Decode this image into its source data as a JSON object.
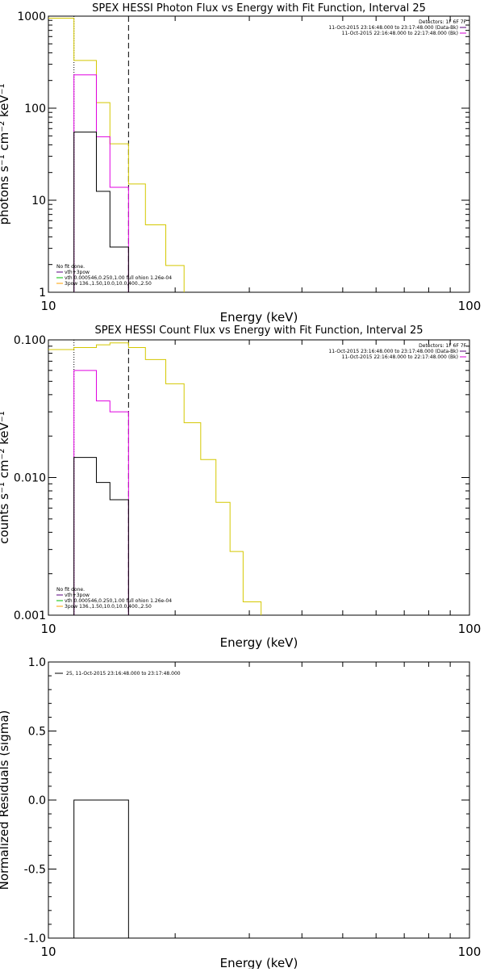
{
  "chart_data": [
    {
      "type": "line",
      "title": "SPEX HESSI Photon Flux vs Energy with Fit Function, Interval 25",
      "xlabel": "Energy (keV)",
      "ylabel": "photons s⁻¹ cm⁻² keV⁻¹",
      "xscale": "log",
      "yscale": "log",
      "xlim": [
        10,
        100
      ],
      "ylim": [
        1,
        1000
      ],
      "x_ticks": [
        10,
        100
      ],
      "y_ticks": [
        1,
        10,
        100,
        1000
      ],
      "y_tick_labels": [
        "1",
        "10",
        "100",
        "1000"
      ],
      "x_tick_labels": [
        "10",
        "100"
      ],
      "legend_top": [
        "Detectors: 1F 6F 7F",
        "11-Oct-2015 23:16:48.000 to 23:17:48.000 (Data-Bk)",
        "11-Oct-2015 22:16:48.000 to 22:17:48.000 (Bk)"
      ],
      "legend_top_colors": [
        "",
        "#5a007f",
        "#d400d4"
      ],
      "legend_bottom": [
        "No fit done.",
        "vth+3pow",
        "vth 0.000546,0.250,1.00  full ohion 1.26e-04",
        "3pow 136.,1.50,10.0,10.0,400.,2.50"
      ],
      "legend_bottom_colors": [
        "",
        "#5a007f",
        "#00c000",
        "#ffa000"
      ],
      "vlines": [
        {
          "x": 11.5,
          "color": "#000000",
          "style": "dotted"
        },
        {
          "x": 15.5,
          "color": "#000000",
          "style": "dashed"
        }
      ],
      "series": [
        {
          "color": "#d4c800",
          "edges": [
            10,
            11.5,
            13,
            14,
            15.5,
            17,
            19,
            21
          ],
          "values": [
            950,
            330,
            115,
            41,
            15,
            5.4,
            1.95
          ]
        },
        {
          "color": "#e000e0",
          "edges": [
            11.5,
            13,
            14,
            15.5
          ],
          "values": [
            230,
            49,
            13.8
          ]
        },
        {
          "color": "#000000",
          "edges": [
            11.5,
            13,
            14,
            15.5
          ],
          "values": [
            55,
            12.5,
            3.1
          ]
        }
      ]
    },
    {
      "type": "line",
      "title": "SPEX HESSI Count Flux vs Energy with Fit Function, Interval 25",
      "xlabel": "Energy (keV)",
      "ylabel": "counts s⁻¹ cm⁻² keV⁻¹",
      "xscale": "log",
      "yscale": "log",
      "xlim": [
        10,
        100
      ],
      "ylim": [
        0.001,
        0.1
      ],
      "x_ticks": [
        10,
        100
      ],
      "y_ticks": [
        0.001,
        0.01,
        0.1
      ],
      "y_tick_labels": [
        "0.001",
        "0.010",
        "0.100"
      ],
      "x_tick_labels": [
        "10",
        "100"
      ],
      "legend_top": [
        "Detectors: 1F 6F 7F",
        "11-Oct-2015 23:16:48.000 to 23:17:48.000 (Data-Bk)",
        "11-Oct-2015 22:16:48.000 to 22:17:48.000 (Bk)"
      ],
      "legend_top_colors": [
        "",
        "#5a007f",
        "#d400d4"
      ],
      "legend_bottom": [
        "No fit done.",
        "vth+3pow",
        "vth 0.000546,0.250,1.00  full ohion 1.26e-04",
        "3pow 136.,1.50,10.0,10.0,400.,2.50"
      ],
      "legend_bottom_colors": [
        "",
        "#5a007f",
        "#00c000",
        "#ffa000"
      ],
      "vlines": [
        {
          "x": 11.5,
          "color": "#000000",
          "style": "dotted"
        },
        {
          "x": 15.5,
          "color": "#000000",
          "style": "dashed"
        }
      ],
      "series": [
        {
          "color": "#d4c800",
          "edges": [
            10,
            11.5,
            13,
            14,
            15.5,
            17,
            19,
            21,
            23,
            25,
            27,
            29,
            32
          ],
          "values": [
            0.085,
            0.088,
            0.092,
            0.095,
            0.088,
            0.072,
            0.048,
            0.025,
            0.0135,
            0.0066,
            0.0029,
            0.00125
          ]
        },
        {
          "color": "#e000e0",
          "edges": [
            11.5,
            13,
            14,
            15.5
          ],
          "values": [
            0.06,
            0.036,
            0.03
          ]
        },
        {
          "color": "#000000",
          "edges": [
            11.5,
            13,
            14,
            15.5
          ],
          "values": [
            0.014,
            0.0092,
            0.0069
          ]
        }
      ]
    },
    {
      "type": "line",
      "title": "",
      "xlabel": "Energy (keV)",
      "ylabel": "Normalized Residuals (sigma)",
      "xscale": "log",
      "yscale": "linear",
      "xlim": [
        10,
        100
      ],
      "ylim": [
        -1,
        1
      ],
      "x_ticks": [
        10,
        100
      ],
      "y_ticks": [
        -1,
        -0.5,
        0,
        0.5,
        1
      ],
      "y_tick_labels": [
        "-1.0",
        "-0.5",
        "0.0",
        "0.5",
        "1.0"
      ],
      "x_tick_labels": [
        "10",
        "100"
      ],
      "legend_top": [
        "25, 11-Oct-2015 23:16:48.000 to 23:17:48.000"
      ],
      "legend_top_colors": [
        "#000000"
      ],
      "legend_bottom": [],
      "legend_bottom_colors": [],
      "vlines": [],
      "series": [
        {
          "color": "#000000",
          "edges": [
            11.5,
            15.5
          ],
          "values": [
            0
          ],
          "box": true
        }
      ]
    }
  ]
}
